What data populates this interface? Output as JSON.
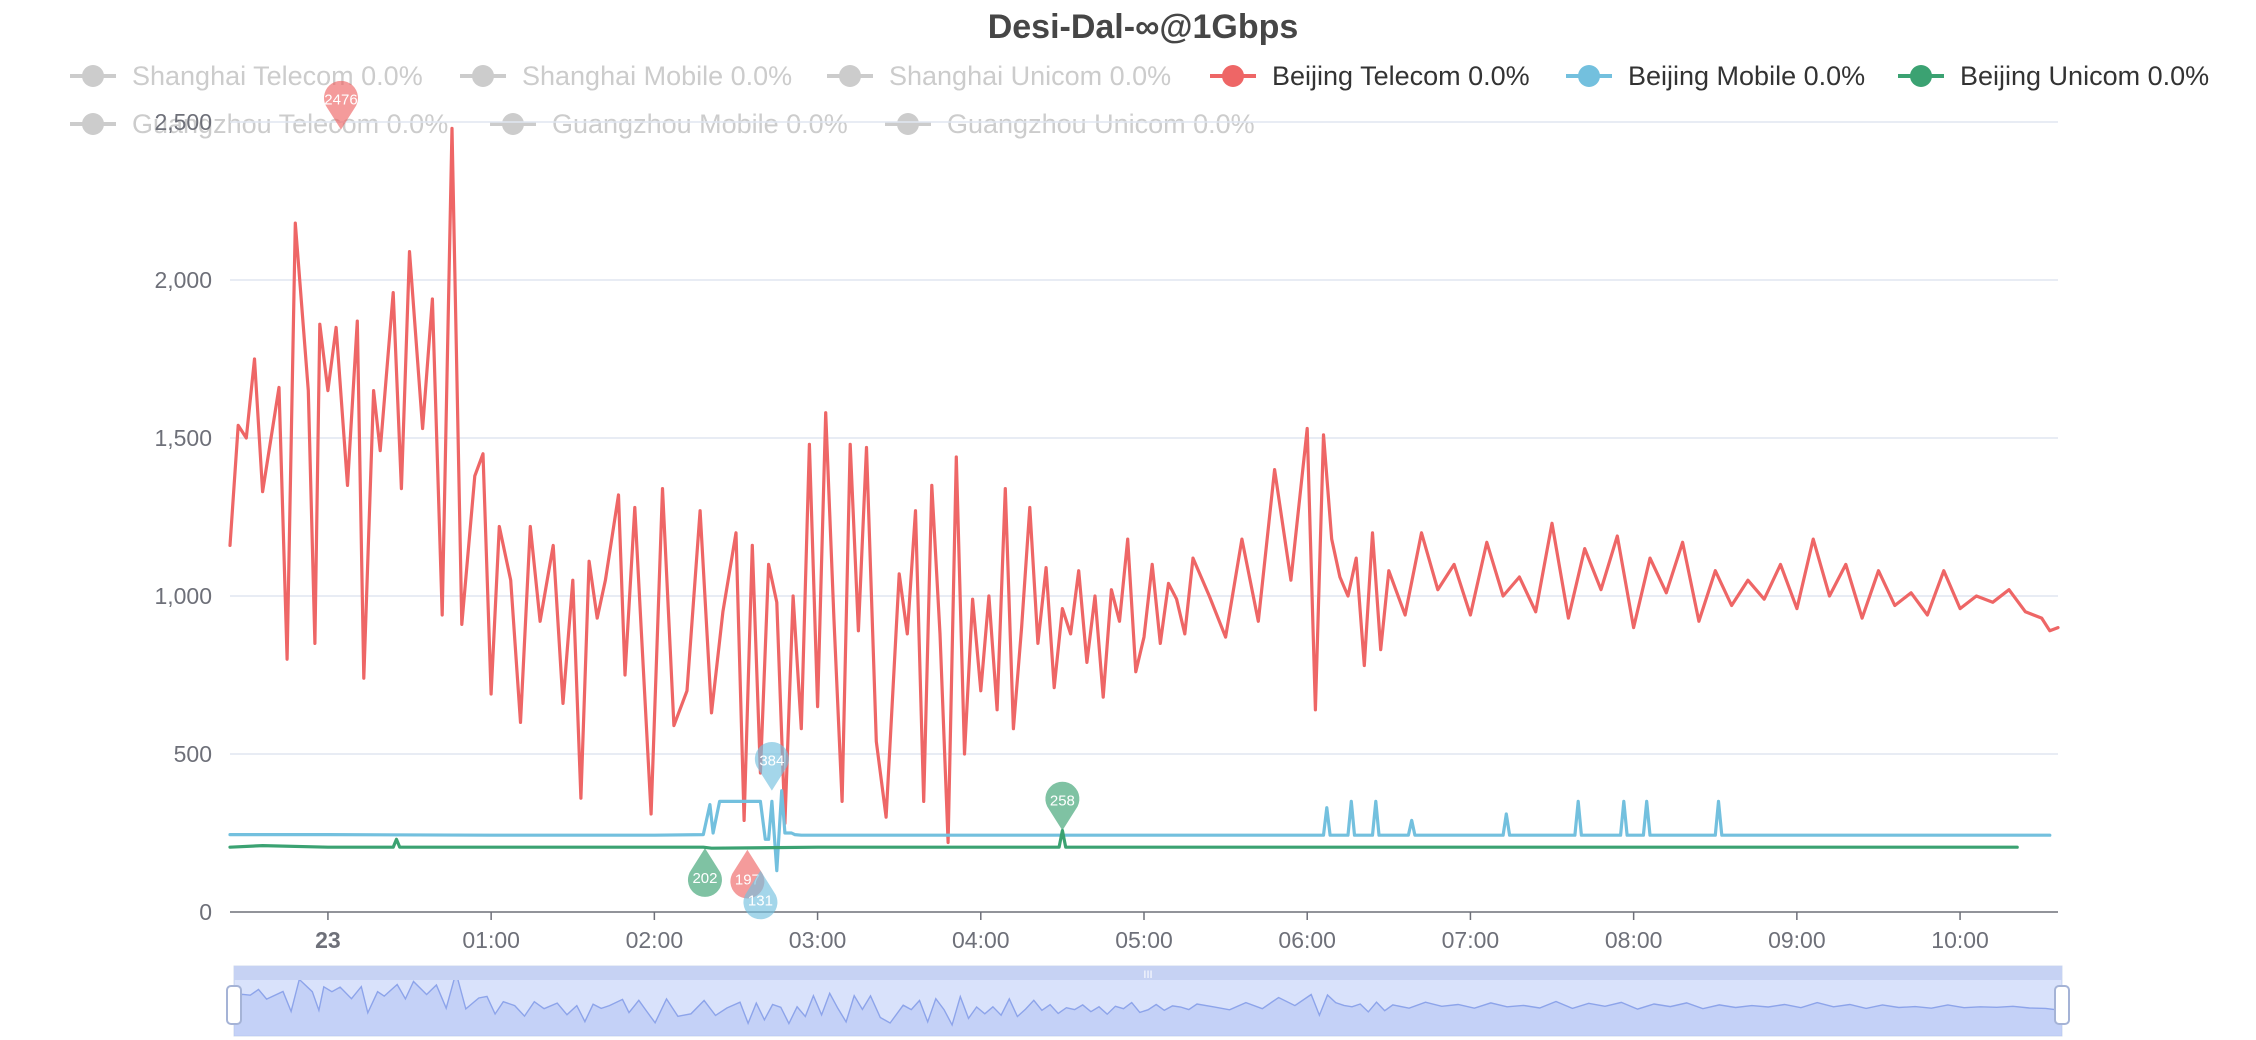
{
  "chart_data": {
    "type": "line",
    "title": "Desi-Dal-∞@1Gbps",
    "ylim": [
      0,
      2500
    ],
    "y_ticks": [
      "0",
      "500",
      "1,000",
      "1,500",
      "2,000",
      "2,500"
    ],
    "x_ticks": [
      "23",
      "01:00",
      "02:00",
      "03:00",
      "04:00",
      "05:00",
      "06:00",
      "07:00",
      "08:00",
      "09:00",
      "10:00"
    ],
    "x_range_hours": [
      0.4,
      11.6
    ],
    "grid": true,
    "legend_position": "top",
    "legend": [
      {
        "name": "Shanghai Telecom 0.0%",
        "color": "#cccccc",
        "active": false
      },
      {
        "name": "Shanghai Mobile 0.0%",
        "color": "#cccccc",
        "active": false
      },
      {
        "name": "Shanghai Unicom 0.0%",
        "color": "#cccccc",
        "active": false
      },
      {
        "name": "Beijing Telecom 0.0%",
        "color": "#ee6666",
        "active": true
      },
      {
        "name": "Beijing Mobile 0.0%",
        "color": "#73c0de",
        "active": true
      },
      {
        "name": "Beijing Unicom 0.0%",
        "color": "#3ba272",
        "active": true
      },
      {
        "name": "Guangzhou Telecom 0.0%",
        "color": "#cccccc",
        "active": false
      },
      {
        "name": "Guangzhou Mobile 0.0%",
        "color": "#cccccc",
        "active": false
      },
      {
        "name": "Guangzhou Unicom 0.0%",
        "color": "#cccccc",
        "active": false
      }
    ],
    "series": [
      {
        "name": "Beijing Telecom 0.0%",
        "color": "#ee6666",
        "x": [
          0.4,
          0.45,
          0.5,
          0.55,
          0.6,
          0.7,
          0.75,
          0.8,
          0.88,
          0.92,
          0.95,
          1.0,
          1.05,
          1.12,
          1.18,
          1.22,
          1.28,
          1.32,
          1.4,
          1.45,
          1.5,
          1.58,
          1.64,
          1.7,
          1.76,
          1.82,
          1.9,
          1.95,
          2.0,
          2.05,
          2.12,
          2.18,
          2.24,
          2.3,
          2.38,
          2.44,
          2.5,
          2.55,
          2.6,
          2.65,
          2.7,
          2.78,
          2.82,
          2.88,
          2.92,
          2.98,
          3.05,
          3.12,
          3.2,
          3.28,
          3.35,
          3.42,
          3.5,
          3.55,
          3.6,
          3.65,
          3.7,
          3.75,
          3.8,
          3.85,
          3.9,
          3.95,
          4.0,
          4.05,
          4.1,
          4.15,
          4.2,
          4.25,
          4.3,
          4.36,
          4.42,
          4.5,
          4.55,
          4.6,
          4.65,
          4.7,
          4.75,
          4.8,
          4.85,
          4.9,
          4.95,
          5.0,
          5.05,
          5.1,
          5.15,
          5.2,
          5.25,
          5.3,
          5.35,
          5.4,
          5.45,
          5.5,
          5.55,
          5.6,
          5.65,
          5.7,
          5.75,
          5.8,
          5.85,
          5.9,
          5.95,
          6.0,
          6.05,
          6.1,
          6.15,
          6.2,
          6.25,
          6.3,
          6.4,
          6.5,
          6.6,
          6.7,
          6.8,
          6.9,
          7.0,
          7.05,
          7.1,
          7.15,
          7.2,
          7.25,
          7.3,
          7.35,
          7.4,
          7.45,
          7.5,
          7.6,
          7.7,
          7.8,
          7.9,
          8.0,
          8.1,
          8.2,
          8.3,
          8.4,
          8.5,
          8.6,
          8.7,
          8.8,
          8.9,
          9.0,
          9.1,
          9.2,
          9.3,
          9.4,
          9.5,
          9.6,
          9.7,
          9.8,
          9.9,
          10.0,
          10.1,
          10.2,
          10.3,
          10.4,
          10.5,
          10.6,
          10.7,
          10.8,
          10.9,
          11.0,
          11.1,
          11.2,
          11.3,
          11.4,
          11.5,
          11.55,
          11.6
        ],
        "values": [
          1160,
          1540,
          1500,
          1750,
          1330,
          1660,
          800,
          2180,
          1650,
          850,
          1860,
          1650,
          1850,
          1350,
          1870,
          740,
          1650,
          1460,
          1960,
          1340,
          2090,
          1530,
          1940,
          940,
          2480,
          910,
          1380,
          1450,
          690,
          1220,
          1050,
          600,
          1220,
          920,
          1160,
          660,
          1050,
          360,
          1110,
          930,
          1050,
          1320,
          750,
          1280,
          890,
          310,
          1340,
          590,
          700,
          1270,
          630,
          950,
          1200,
          290,
          1160,
          440,
          1100,
          980,
          280,
          1000,
          580,
          1480,
          650,
          1580,
          930,
          350,
          1480,
          890,
          1470,
          540,
          300,
          1070,
          880,
          1270,
          350,
          1350,
          880,
          220,
          1440,
          500,
          990,
          700,
          1000,
          640,
          1340,
          580,
          900,
          1280,
          850,
          1090,
          710,
          960,
          880,
          1080,
          790,
          1000,
          680,
          1020,
          920,
          1180,
          760,
          870,
          1100,
          850,
          1040,
          990,
          880,
          1120,
          1000,
          870,
          1180,
          920,
          1400,
          1050,
          1530,
          640,
          1510,
          1180,
          1060,
          1000,
          1120,
          780,
          1200,
          830,
          1080,
          940,
          1200,
          1020,
          1100,
          940,
          1170,
          1000,
          1060,
          950,
          1230,
          930,
          1150,
          1020,
          1190,
          900,
          1120,
          1010,
          1170,
          920,
          1080,
          970,
          1050,
          990,
          1100,
          960,
          1180,
          1000,
          1100,
          930,
          1080,
          970,
          1010,
          940,
          1080,
          960,
          1000,
          980,
          1020,
          950,
          930,
          890,
          900
        ]
      },
      {
        "name": "Beijing Mobile 0.0%",
        "color": "#73c0de",
        "x": [
          0.4,
          1.0,
          2.0,
          3.0,
          3.3,
          3.34,
          3.36,
          3.4,
          3.45,
          3.5,
          3.65,
          3.68,
          3.7,
          3.72,
          3.75,
          3.78,
          3.8,
          3.84,
          3.86,
          3.9,
          5.0,
          7.1,
          7.12,
          7.14,
          7.25,
          7.27,
          7.29,
          7.4,
          7.42,
          7.44,
          7.62,
          7.64,
          7.66,
          8.2,
          8.22,
          8.24,
          8.64,
          8.66,
          8.68,
          8.92,
          8.94,
          8.96,
          9.06,
          9.08,
          9.1,
          9.5,
          9.52,
          9.54,
          11.55
        ],
        "values": [
          245,
          245,
          243,
          243,
          245,
          340,
          250,
          350,
          350,
          350,
          350,
          230,
          230,
          350,
          131,
          384,
          250,
          250,
          245,
          243,
          243,
          243,
          330,
          243,
          243,
          350,
          243,
          243,
          350,
          243,
          243,
          290,
          243,
          243,
          310,
          243,
          243,
          350,
          243,
          243,
          350,
          243,
          243,
          350,
          243,
          243,
          350,
          243,
          243
        ]
      },
      {
        "name": "Beijing Unicom 0.0%",
        "color": "#3ba272",
        "x": [
          0.4,
          0.6,
          1.0,
          1.4,
          1.42,
          1.44,
          2.0,
          3.0,
          3.3,
          3.35,
          4.0,
          5.0,
          5.48,
          5.5,
          5.52,
          7.0,
          9.0,
          11.35
        ],
        "values": [
          205,
          210,
          205,
          205,
          230,
          205,
          205,
          205,
          205,
          202,
          205,
          205,
          205,
          258,
          205,
          205,
          205,
          205
        ]
      }
    ],
    "markers": [
      {
        "series": "Beijing Telecom 0.0%",
        "label": "2476",
        "x": 1.08,
        "y": 2476,
        "kind": "max"
      },
      {
        "series": "Beijing Telecom 0.0%",
        "label": "197",
        "x": 3.57,
        "y": 197,
        "kind": "min"
      },
      {
        "series": "Beijing Mobile 0.0%",
        "label": "384",
        "x": 3.72,
        "y": 384,
        "kind": "max"
      },
      {
        "series": "Beijing Mobile 0.0%",
        "label": "131",
        "x": 3.65,
        "y": 131,
        "kind": "min"
      },
      {
        "series": "Beijing Unicom 0.0%",
        "label": "258",
        "x": 5.5,
        "y": 258,
        "kind": "max"
      },
      {
        "series": "Beijing Unicom 0.0%",
        "label": "202",
        "x": 3.31,
        "y": 202,
        "kind": "min"
      }
    ]
  },
  "zoom": {
    "range_start_pct": 0,
    "range_end_pct": 100,
    "handle_label": "III"
  }
}
